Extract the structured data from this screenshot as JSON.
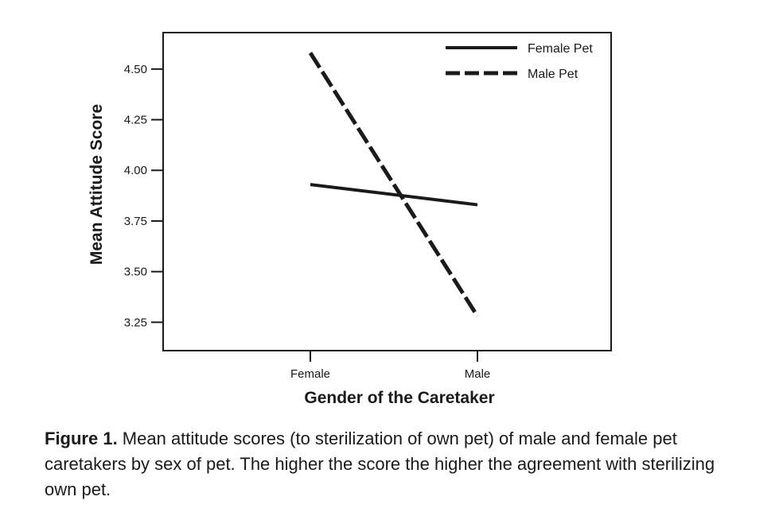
{
  "chart_data": {
    "type": "line",
    "title": "",
    "xlabel": "Gender of the Caretaker",
    "ylabel": "Mean Attitude Score",
    "categories": [
      "Female",
      "Male"
    ],
    "yticks": [
      "3.25",
      "3.50",
      "3.75",
      "4.00",
      "4.25",
      "4.50"
    ],
    "ylim": [
      3.11,
      4.68
    ],
    "grid": false,
    "legend_position": "top-right",
    "series": [
      {
        "name": "Female Pet",
        "values": [
          3.93,
          3.83
        ],
        "style": "solid",
        "color": "#1a1a1a"
      },
      {
        "name": "Male Pet",
        "values": [
          4.58,
          3.28
        ],
        "style": "dashed",
        "color": "#1a1a1a"
      }
    ]
  },
  "caption": {
    "label": "Figure 1.",
    "text": " Mean attitude scores (to sterilization of own pet) of male and female pet caretakers by sex of pet. The higher the score the higher the agreement with sterilizing own pet."
  }
}
